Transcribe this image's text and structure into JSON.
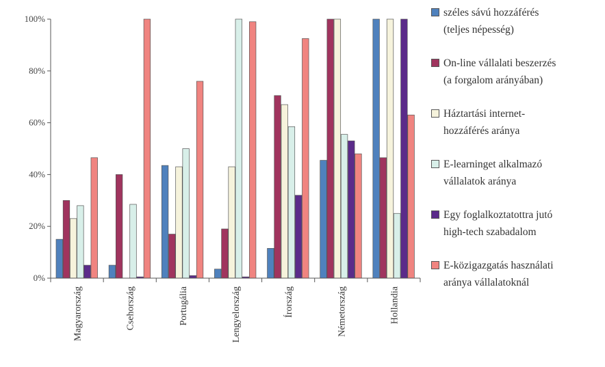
{
  "chart_data": {
    "type": "bar",
    "title": "",
    "xlabel": "",
    "ylabel": "",
    "ylim": [
      0,
      100
    ],
    "yticks": [
      "0%",
      "20%",
      "40%",
      "60%",
      "80%",
      "100%"
    ],
    "ytick_values": [
      0,
      20,
      40,
      60,
      80,
      100
    ],
    "grid": false,
    "legend_position": "right",
    "categories": [
      "Magyarország",
      "Csehország",
      "Portugália",
      "Lengyelország",
      "Írország",
      "Németország",
      "Hollandia"
    ],
    "series": [
      {
        "name": "széles sávú hozzáférés\n(teljes népesség)",
        "color": "#4f81bd",
        "values": [
          15,
          5,
          43.5,
          3.5,
          11.5,
          45.5,
          100
        ]
      },
      {
        "name": "On-line vállalati beszerzés\n(a forgalom arányában)",
        "color": "#a0345e",
        "values": [
          30,
          40,
          17,
          19,
          70.5,
          100,
          46.5
        ]
      },
      {
        "name": "Háztartási internet-\nhozzáférés aránya",
        "color": "#f6f3dc",
        "values": [
          23,
          0,
          43,
          43,
          67,
          100,
          100
        ]
      },
      {
        "name": "E-learninget alkalmazó\nvállalatok aránya",
        "color": "#d8efe9",
        "values": [
          28,
          28.5,
          50,
          100,
          58.5,
          55.5,
          25
        ]
      },
      {
        "name": "Egy foglalkoztatottra jutó\nhigh-tech szabadalom",
        "color": "#5b2b8a",
        "values": [
          5,
          0.5,
          1,
          0.5,
          32,
          53,
          100
        ]
      },
      {
        "name": "E-közigazgatás használati\naránya vállalatoknál",
        "color": "#f08480",
        "values": [
          46.5,
          100,
          76,
          99,
          92.5,
          48,
          63
        ]
      }
    ]
  }
}
